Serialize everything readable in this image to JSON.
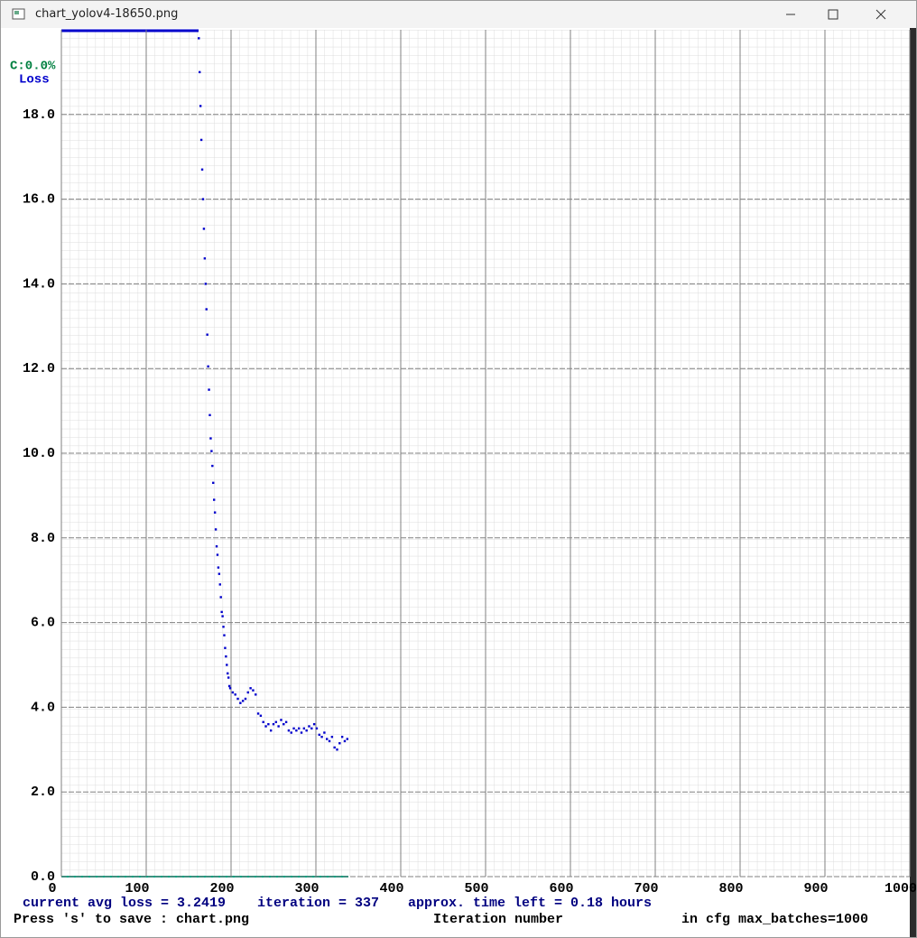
{
  "window": {
    "title": "chart_yolov4-18650.png"
  },
  "chart_data": {
    "type": "scatter",
    "legend": [
      "C:0.0%",
      "Loss"
    ],
    "x_label": "Iteration number",
    "status": [
      "current avg loss = 3.2419",
      "iteration = 337",
      "approx. time left = 0.18 hours"
    ],
    "footer": [
      "Press 's' to save : chart.png",
      "in cfg max_batches=1000"
    ],
    "xlim": [
      0,
      1000
    ],
    "xticks": [
      0,
      100,
      200,
      300,
      400,
      500,
      600,
      700,
      800,
      900,
      1000
    ],
    "ylim": [
      0,
      20
    ],
    "yticks": [
      {
        "value": 0,
        "label": "0.0"
      },
      {
        "value": 2,
        "label": "2.0"
      },
      {
        "value": 4,
        "label": "4.0"
      },
      {
        "value": 6,
        "label": "6.0"
      },
      {
        "value": 8,
        "label": "8.0"
      },
      {
        "value": 10,
        "label": "10.0"
      },
      {
        "value": 12,
        "label": "12.0"
      },
      {
        "value": 14,
        "label": "14.0"
      },
      {
        "value": 16,
        "label": "16.0"
      },
      {
        "value": 18,
        "label": "18.0"
      }
    ],
    "grid": true,
    "series": [
      {
        "name": "Loss",
        "color": "#0000cc",
        "x": [
          162,
          163,
          164,
          165,
          166,
          167,
          168,
          169,
          170,
          171,
          172,
          173,
          174,
          175,
          176,
          177,
          178,
          179,
          180,
          181,
          182,
          183,
          184,
          185,
          186,
          187,
          188,
          189,
          190,
          191,
          192,
          193,
          194,
          195,
          196,
          197,
          198,
          199,
          202,
          205,
          208,
          211,
          214,
          217,
          220,
          223,
          226,
          229,
          232,
          235,
          238,
          241,
          244,
          247,
          250,
          253,
          256,
          259,
          262,
          265,
          268,
          271,
          274,
          277,
          280,
          283,
          286,
          289,
          292,
          295,
          298,
          301,
          304,
          307,
          310,
          313,
          316,
          319,
          322,
          325,
          328,
          331,
          334,
          337
        ],
        "values": [
          19.8,
          19.0,
          18.2,
          17.4,
          16.7,
          16.0,
          15.3,
          14.6,
          14.0,
          13.4,
          12.8,
          12.05,
          11.5,
          10.9,
          10.35,
          10.05,
          9.7,
          9.3,
          8.9,
          8.6,
          8.2,
          7.8,
          7.6,
          7.3,
          7.15,
          6.9,
          6.6,
          6.25,
          6.15,
          5.9,
          5.7,
          5.4,
          5.2,
          5.0,
          4.8,
          4.7,
          4.5,
          4.45,
          4.35,
          4.3,
          4.2,
          4.1,
          4.15,
          4.2,
          4.35,
          4.45,
          4.4,
          4.3,
          3.85,
          3.8,
          3.65,
          3.55,
          3.6,
          3.45,
          3.6,
          3.65,
          3.55,
          3.7,
          3.6,
          3.65,
          3.45,
          3.4,
          3.5,
          3.45,
          3.5,
          3.4,
          3.5,
          3.45,
          3.55,
          3.5,
          3.6,
          3.5,
          3.35,
          3.3,
          3.4,
          3.25,
          3.2,
          3.3,
          3.05,
          3.0,
          3.15,
          3.3,
          3.2,
          3.25
        ]
      }
    ]
  }
}
